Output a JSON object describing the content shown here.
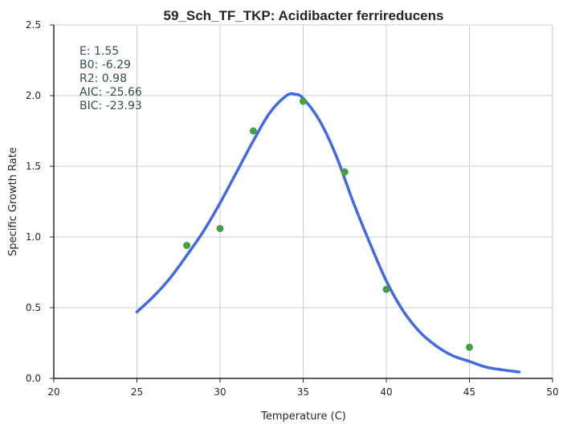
{
  "chart_data": {
    "type": "scatter",
    "title": "59_Sch_TF_TKP: Acidibacter ferrireducens",
    "xlabel": "Temperature (C)",
    "ylabel": "Specific Growth Rate",
    "xlim": [
      20,
      50
    ],
    "ylim": [
      0.0,
      2.5
    ],
    "xticks": [
      "20",
      "25",
      "30",
      "35",
      "40",
      "45",
      "50"
    ],
    "yticks": [
      "0.0",
      "0.5",
      "1.0",
      "1.5",
      "2.0",
      "2.5"
    ],
    "grid": true,
    "annotations": [
      "E:  1.55",
      "B0:  -6.29",
      "R2:  0.98",
      "AIC: -25.66",
      "BIC: -23.93"
    ],
    "series": [
      {
        "kind": "points",
        "color": "#43a047",
        "x": [
          28,
          30,
          32,
          35,
          37.5,
          40,
          45
        ],
        "y": [
          0.94,
          1.06,
          1.75,
          1.96,
          1.46,
          0.63,
          0.22
        ]
      },
      {
        "kind": "line",
        "color": "#4169e1",
        "x": [
          25,
          26,
          27,
          28,
          29,
          30,
          31,
          32,
          33,
          34,
          34.5,
          35,
          36,
          37,
          38,
          39,
          40,
          41,
          42,
          43,
          44,
          45,
          46,
          47,
          48
        ],
        "y": [
          0.47,
          0.58,
          0.71,
          0.87,
          1.04,
          1.24,
          1.46,
          1.68,
          1.88,
          2.0,
          2.01,
          1.98,
          1.82,
          1.57,
          1.25,
          0.96,
          0.69,
          0.48,
          0.33,
          0.23,
          0.16,
          0.12,
          0.08,
          0.06,
          0.045
        ]
      }
    ]
  }
}
